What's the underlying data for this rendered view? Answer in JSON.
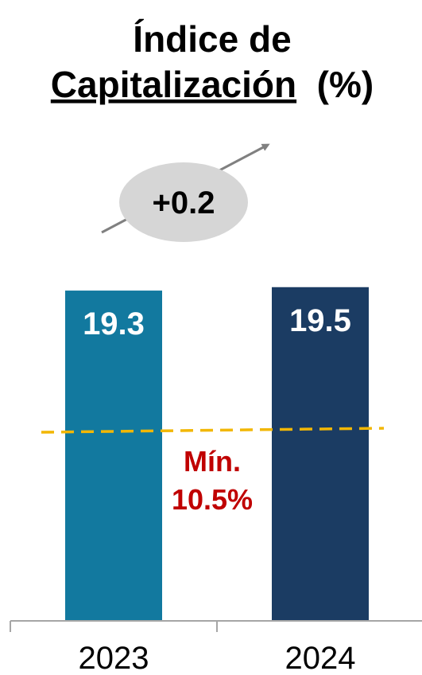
{
  "chart_data": {
    "type": "bar",
    "title_line1": "Índice de",
    "title_line2_underlined": "Capitalización",
    "title_line2_suffix": " (%)",
    "categories": [
      "2023",
      "2024"
    ],
    "values": [
      19.3,
      19.5
    ],
    "value_labels": [
      "19.3",
      "19.5"
    ],
    "bar_colors": [
      "#12799f",
      "#1b3c63"
    ],
    "minimum_line": {
      "value": 10.5,
      "label_line1": "Mín.",
      "label_line2": "10.5%",
      "line_color": "#f2b705",
      "label_color": "#c00000",
      "style": "dashed"
    },
    "change_annotation": {
      "label": "+0.2",
      "bubble_color": "#d6d6d6",
      "arrow_color": "#808080"
    }
  }
}
